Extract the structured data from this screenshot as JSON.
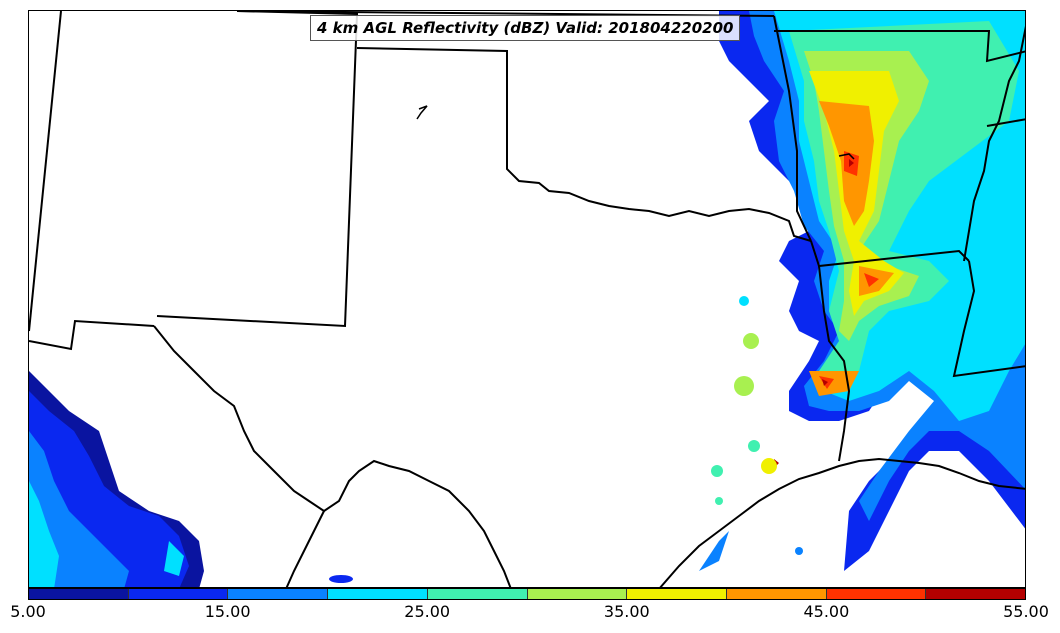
{
  "title": "4 km AGL Reflectivity (dBZ) Valid: 201804220200",
  "colorbar": {
    "colors": [
      "#0a14a0",
      "#0a28f0",
      "#0a82ff",
      "#00e0ff",
      "#40f0b0",
      "#a8f050",
      "#f0f000",
      "#ff9600",
      "#ff3200",
      "#b40000"
    ],
    "tick_labels": [
      "5.00",
      "15.00",
      "25.00",
      "35.00",
      "45.00",
      "55.00"
    ]
  },
  "reflectivity_levels_dbz": [
    5,
    10,
    15,
    20,
    25,
    30,
    35,
    40,
    45,
    50,
    55
  ]
}
